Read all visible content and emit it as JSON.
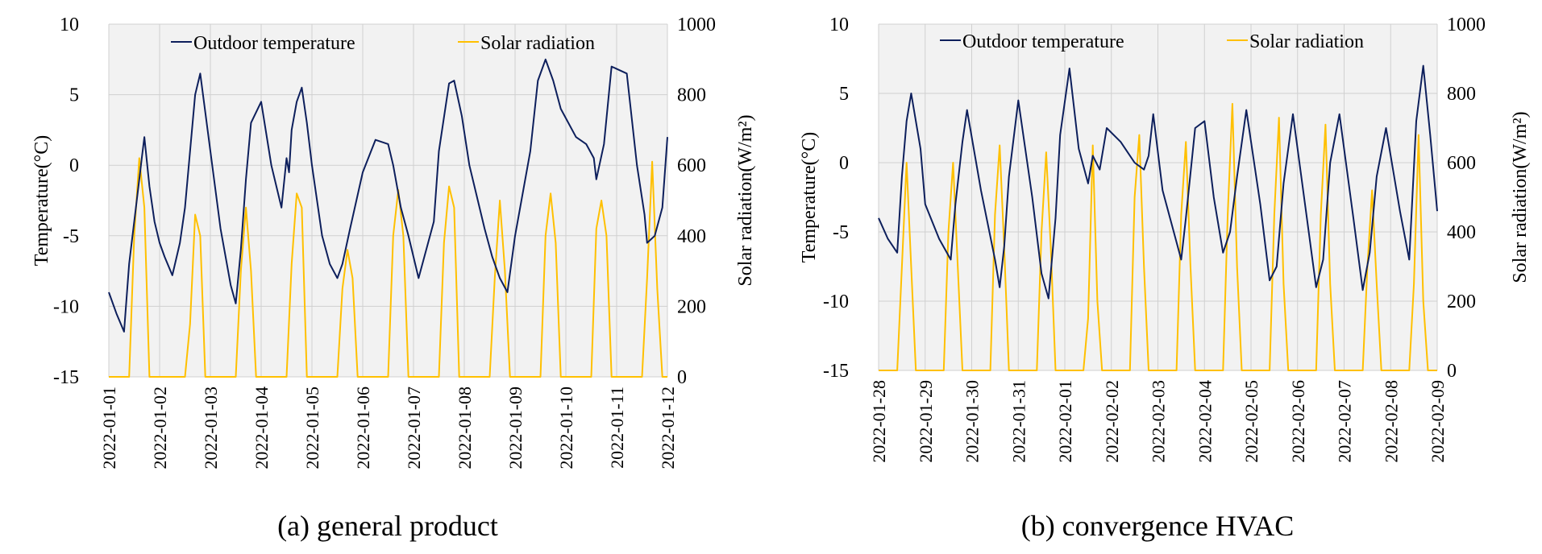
{
  "chart_data": [
    {
      "type": "line",
      "caption": "(a) general product",
      "x_tick_labels": [
        "2022-01-01",
        "2022-01-02",
        "2022-01-03",
        "2022-01-04",
        "2022-01-05",
        "2022-01-06",
        "2022-01-07",
        "2022-01-08",
        "2022-01-09",
        "2022-01-10",
        "2022-01-11",
        "2022-01-12"
      ],
      "xlim": [
        0,
        11
      ],
      "ylabel_left": "Temperature(°C)",
      "ylabel_right": "Solar radiation(W/m²)",
      "ylim_left": [
        -15,
        10
      ],
      "ylim_right": [
        0,
        1000
      ],
      "yticks_left": [
        "10",
        "5",
        "0",
        "-5",
        "-10",
        "-15"
      ],
      "yticks_right": [
        "1000",
        "800",
        "600",
        "400",
        "200",
        "0"
      ],
      "grid": true,
      "legend_position": "top",
      "series": [
        {
          "name": "Outdoor temperature",
          "axis": "left",
          "color": "#0d1f5c",
          "x": [
            0,
            0.15,
            0.3,
            0.4,
            0.5,
            0.6,
            0.65,
            0.7,
            0.8,
            0.9,
            1.0,
            1.1,
            1.25,
            1.4,
            1.5,
            1.6,
            1.7,
            1.8,
            2.0,
            2.2,
            2.4,
            2.5,
            2.6,
            2.7,
            2.8,
            3.0,
            3.2,
            3.3,
            3.4,
            3.5,
            3.55,
            3.6,
            3.7,
            3.8,
            3.9,
            4.0,
            4.2,
            4.35,
            4.5,
            4.6,
            4.75,
            5.0,
            5.25,
            5.5,
            5.6,
            5.75,
            5.9,
            6.1,
            6.4,
            6.5,
            6.7,
            6.8,
            6.95,
            7.1,
            7.4,
            7.55,
            7.7,
            7.85,
            8.0,
            8.3,
            8.45,
            8.6,
            8.75,
            8.9,
            9.2,
            9.4,
            9.55,
            9.6,
            9.75,
            9.9,
            10.2,
            10.4,
            10.55,
            10.6,
            10.75,
            10.9,
            11.0
          ],
          "y": [
            -9.0,
            -10.5,
            -11.8,
            -7.0,
            -4.0,
            -1.0,
            0.5,
            2.0,
            -1.5,
            -4.0,
            -5.5,
            -6.5,
            -7.8,
            -5.5,
            -3.0,
            1.0,
            5.0,
            6.5,
            1.0,
            -4.5,
            -8.5,
            -9.8,
            -6.0,
            -1.0,
            3.0,
            4.5,
            0.0,
            -1.5,
            -3.0,
            0.5,
            -0.5,
            2.5,
            4.5,
            5.5,
            3.0,
            0.0,
            -5.0,
            -7.0,
            -8.0,
            -7.0,
            -4.5,
            -0.5,
            1.8,
            1.5,
            0.0,
            -3.0,
            -5.0,
            -8.0,
            -4.0,
            1.0,
            5.8,
            6.0,
            3.5,
            0.0,
            -4.5,
            -6.5,
            -8.0,
            -9.0,
            -5.0,
            1.0,
            6.0,
            7.5,
            6.0,
            4.0,
            2.0,
            1.5,
            0.5,
            -1.0,
            1.5,
            7.0,
            6.5,
            0.0,
            -3.5,
            -5.5,
            -5.0,
            -3.0,
            2.0
          ]
        },
        {
          "name": "Solar radiation",
          "axis": "right",
          "color": "#ffc000",
          "x": [
            0,
            0.4,
            0.5,
            0.6,
            0.7,
            0.8,
            1.0,
            1.5,
            1.6,
            1.7,
            1.8,
            1.9,
            2.0,
            2.5,
            2.6,
            2.7,
            2.8,
            2.9,
            3.0,
            3.5,
            3.6,
            3.7,
            3.8,
            3.9,
            4.0,
            4.5,
            4.6,
            4.7,
            4.8,
            4.9,
            5.0,
            5.5,
            5.6,
            5.7,
            5.8,
            5.9,
            6.0,
            6.5,
            6.6,
            6.7,
            6.8,
            6.9,
            7.0,
            7.5,
            7.6,
            7.7,
            7.8,
            7.9,
            8.0,
            8.5,
            8.6,
            8.7,
            8.8,
            8.9,
            9.0,
            9.5,
            9.6,
            9.7,
            9.8,
            9.9,
            10.0,
            10.5,
            10.6,
            10.7,
            10.8,
            10.9,
            11.0
          ],
          "y": [
            0,
            0,
            400,
            620,
            480,
            0,
            0,
            0,
            150,
            460,
            400,
            0,
            0,
            0,
            300,
            480,
            300,
            0,
            0,
            0,
            320,
            520,
            480,
            0,
            0,
            0,
            250,
            360,
            280,
            0,
            0,
            0,
            400,
            530,
            400,
            0,
            0,
            0,
            380,
            540,
            480,
            0,
            0,
            0,
            280,
            500,
            300,
            0,
            0,
            0,
            400,
            520,
            380,
            0,
            0,
            0,
            420,
            500,
            400,
            0,
            0,
            0,
            280,
            610,
            250,
            0,
            0
          ]
        }
      ]
    },
    {
      "type": "line",
      "caption": "(b) convergence HVAC",
      "x_tick_labels": [
        "2022-01-28",
        "2022-01-29",
        "2022-01-30",
        "2022-01-31",
        "2022-02-01",
        "2022-02-02",
        "2022-02-03",
        "2022-02-04",
        "2022-02-05",
        "2022-02-06",
        "2022-02-07",
        "2022-02-08",
        "2022-02-09"
      ],
      "xlim": [
        0,
        12
      ],
      "ylabel_left": "Temperature(°C)",
      "ylabel_right": "Solar radiation(W/m²)",
      "ylim_left": [
        -15,
        10
      ],
      "ylim_right": [
        0,
        1000
      ],
      "yticks_left": [
        "10",
        "5",
        "0",
        "-5",
        "-10",
        "-15"
      ],
      "yticks_right": [
        "1000",
        "800",
        "600",
        "400",
        "200",
        "0"
      ],
      "grid": true,
      "legend_position": "top",
      "series": [
        {
          "name": "Outdoor temperature",
          "axis": "left",
          "color": "#0d1f5c",
          "x": [
            0,
            0.2,
            0.4,
            0.5,
            0.6,
            0.7,
            0.9,
            1.0,
            1.3,
            1.55,
            1.65,
            1.8,
            1.9,
            2.2,
            2.5,
            2.6,
            2.7,
            2.8,
            3.0,
            3.3,
            3.5,
            3.65,
            3.8,
            3.9,
            4.1,
            4.3,
            4.5,
            4.6,
            4.75,
            4.9,
            5.2,
            5.5,
            5.7,
            5.8,
            5.9,
            6.1,
            6.5,
            6.6,
            6.8,
            7.0,
            7.2,
            7.4,
            7.55,
            7.7,
            7.9,
            8.2,
            8.4,
            8.55,
            8.7,
            8.9,
            9.2,
            9.4,
            9.55,
            9.7,
            9.9,
            10.2,
            10.4,
            10.55,
            10.7,
            10.9,
            11.2,
            11.4,
            11.55,
            11.7,
            11.85,
            12.0
          ],
          "y": [
            -4.0,
            -5.5,
            -6.5,
            -1.0,
            3.0,
            5.0,
            1.0,
            -3.0,
            -5.5,
            -7.0,
            -3.0,
            1.5,
            3.8,
            -2.0,
            -7.0,
            -9.0,
            -6.0,
            -1.0,
            4.5,
            -2.5,
            -8.0,
            -9.8,
            -4.0,
            2.0,
            6.8,
            1.0,
            -1.5,
            0.5,
            -0.5,
            2.5,
            1.5,
            0.0,
            -0.5,
            0.5,
            3.5,
            -2.0,
            -7.0,
            -4.0,
            2.5,
            3.0,
            -2.5,
            -6.5,
            -5.0,
            -1.0,
            3.8,
            -3.0,
            -8.5,
            -7.5,
            -1.5,
            3.5,
            -4.0,
            -9.0,
            -7.0,
            0.0,
            3.5,
            -4.0,
            -9.2,
            -6.5,
            -1.0,
            2.5,
            -3.5,
            -7.0,
            3.0,
            7.0,
            2.0,
            -3.5
          ]
        },
        {
          "name": "Solar radiation",
          "axis": "right",
          "color": "#ffc000",
          "x": [
            0,
            0.4,
            0.5,
            0.6,
            0.7,
            0.8,
            1.0,
            1.4,
            1.5,
            1.6,
            1.7,
            1.8,
            2.0,
            2.4,
            2.5,
            2.6,
            2.7,
            2.8,
            3.0,
            3.4,
            3.5,
            3.6,
            3.7,
            3.8,
            4.0,
            4.4,
            4.5,
            4.6,
            4.7,
            4.8,
            5.0,
            5.4,
            5.5,
            5.6,
            5.7,
            5.8,
            6.0,
            6.4,
            6.5,
            6.6,
            6.7,
            6.8,
            7.0,
            7.4,
            7.5,
            7.6,
            7.7,
            7.8,
            8.0,
            8.4,
            8.5,
            8.6,
            8.7,
            8.8,
            9.0,
            9.4,
            9.5,
            9.6,
            9.7,
            9.8,
            10.0,
            10.4,
            10.5,
            10.6,
            10.7,
            10.8,
            11.0,
            11.4,
            11.5,
            11.6,
            11.7,
            11.8,
            12.0
          ],
          "y": [
            0,
            0,
            300,
            600,
            300,
            0,
            0,
            0,
            400,
            600,
            300,
            0,
            0,
            0,
            450,
            650,
            350,
            0,
            0,
            0,
            400,
            630,
            350,
            0,
            0,
            0,
            150,
            650,
            200,
            0,
            0,
            0,
            500,
            680,
            300,
            0,
            0,
            0,
            450,
            660,
            300,
            0,
            0,
            0,
            450,
            770,
            300,
            0,
            0,
            0,
            450,
            730,
            250,
            0,
            0,
            0,
            450,
            710,
            250,
            0,
            0,
            0,
            300,
            520,
            250,
            0,
            0,
            0,
            250,
            680,
            200,
            0,
            0
          ]
        }
      ]
    }
  ]
}
